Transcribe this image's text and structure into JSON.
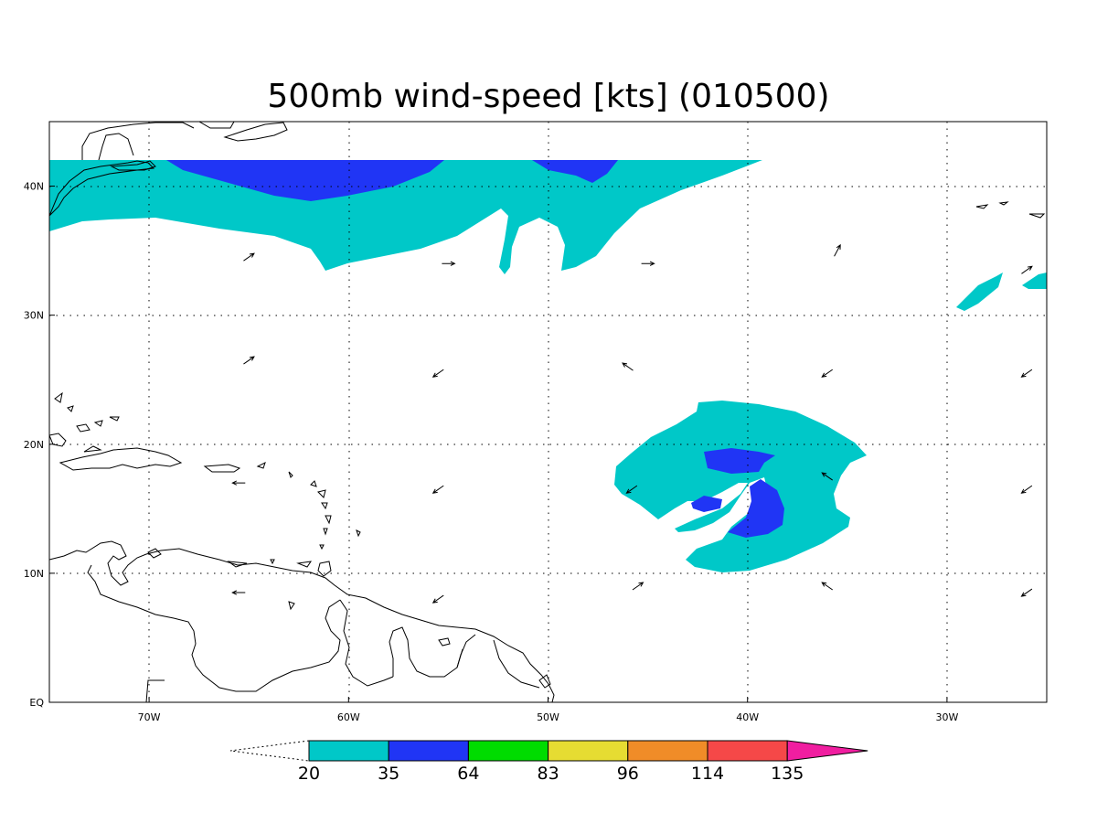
{
  "title": "500mb wind-speed [kts] (010500)",
  "map": {
    "lon_range": [
      -75,
      -25
    ],
    "lat_range": [
      0,
      45
    ],
    "lon_ticks": [
      {
        "lon": -70,
        "label": "70W"
      },
      {
        "lon": -60,
        "label": "60W"
      },
      {
        "lon": -50,
        "label": "50W"
      },
      {
        "lon": -40,
        "label": "40W"
      },
      {
        "lon": -30,
        "label": "30W"
      }
    ],
    "lat_ticks": [
      {
        "lat": 0,
        "label": "EQ"
      },
      {
        "lat": 10,
        "label": "10N"
      },
      {
        "lat": 20,
        "label": "20N"
      },
      {
        "lat": 30,
        "label": "30N"
      },
      {
        "lat": 40,
        "label": "40N"
      }
    ],
    "grid": "dotted",
    "colors": {
      "20-35": "#00c8c8",
      "35-64": "#2035f5"
    }
  },
  "colorbar": {
    "levels": [
      "20",
      "35",
      "64",
      "83",
      "96",
      "114",
      "135"
    ],
    "colors": [
      "#00c8c8",
      "#2035f5",
      "#00dc00",
      "#e6dc32",
      "#f08c28",
      "#f54848",
      "#f01ea0"
    ],
    "lower_extension": "open",
    "upper_color": "#f01ea0"
  },
  "wind_vectors": [
    {
      "lon": -65,
      "lat": 34.5,
      "dir": "NE"
    },
    {
      "lon": -55,
      "lat": 34,
      "dir": "E"
    },
    {
      "lon": -45,
      "lat": 34,
      "dir": "E"
    },
    {
      "lon": -35.5,
      "lat": 35,
      "dir": "NNE"
    },
    {
      "lon": -26,
      "lat": 33.5,
      "dir": "NE"
    },
    {
      "lon": -65,
      "lat": 26.5,
      "dir": "NE"
    },
    {
      "lon": -55.5,
      "lat": 25.5,
      "dir": "SW"
    },
    {
      "lon": -46,
      "lat": 26,
      "dir": "NW"
    },
    {
      "lon": -36,
      "lat": 25.5,
      "dir": "SW"
    },
    {
      "lon": -26,
      "lat": 25.5,
      "dir": "SW"
    },
    {
      "lon": -65.5,
      "lat": 17,
      "dir": "W"
    },
    {
      "lon": -55.5,
      "lat": 16.5,
      "dir": "SW"
    },
    {
      "lon": -45.8,
      "lat": 16.5,
      "dir": "SW"
    },
    {
      "lon": -36,
      "lat": 17.5,
      "dir": "NW"
    },
    {
      "lon": -26,
      "lat": 16.5,
      "dir": "SW"
    },
    {
      "lon": -65.5,
      "lat": 8.5,
      "dir": "W"
    },
    {
      "lon": -55.5,
      "lat": 8,
      "dir": "SW"
    },
    {
      "lon": -45.5,
      "lat": 9,
      "dir": "NE"
    },
    {
      "lon": -36,
      "lat": 9,
      "dir": "NW"
    },
    {
      "lon": -26,
      "lat": 8.5,
      "dir": "SW"
    }
  ]
}
